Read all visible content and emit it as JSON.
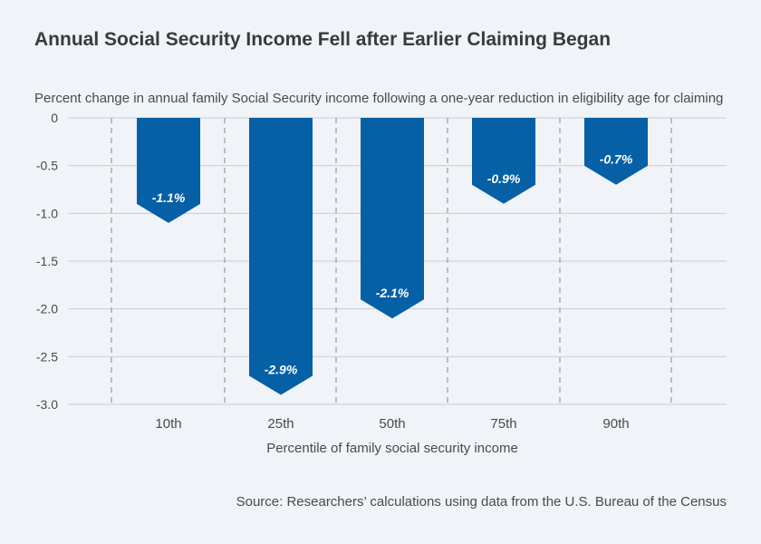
{
  "title": "Annual Social Security Income Fell after Earlier Claiming Began",
  "subtitle": "Percent change in annual family Social Security income following a one-year reduction in eligibility age for claiming",
  "source": "Source: Researchers’ calculations using data from the U.S. Bureau of the Census",
  "colors": {
    "bar": "#0560a6",
    "grid": "#c9cdd2",
    "divider": "#9a9a9a",
    "text": "#4a4a4a",
    "label": "#ffffff"
  },
  "chart_data": {
    "type": "bar",
    "title": "Annual Social Security Income Fell after Earlier Claiming Began",
    "subtitle": "Percent change in annual family Social Security income following a one-year reduction in eligibility age for claiming",
    "xlabel": "Percentile of family social security income",
    "ylabel": "",
    "categories": [
      "10th",
      "25th",
      "50th",
      "75th",
      "90th"
    ],
    "values": [
      -1.1,
      -2.9,
      -2.1,
      -0.9,
      -0.7
    ],
    "data_labels": [
      "-1.1%",
      "-2.9%",
      "-2.1%",
      "-0.9%",
      "-0.7%"
    ],
    "ylim": [
      -3.0,
      0
    ],
    "yticks": [
      0,
      -0.5,
      -1.0,
      -1.5,
      -2.0,
      -2.5,
      -3.0
    ],
    "ytick_labels": [
      "0",
      "-0.5",
      "-1.0",
      "-1.5",
      "-2.0",
      "-2.5",
      "-3.0"
    ],
    "grid": true,
    "legend": "none"
  }
}
